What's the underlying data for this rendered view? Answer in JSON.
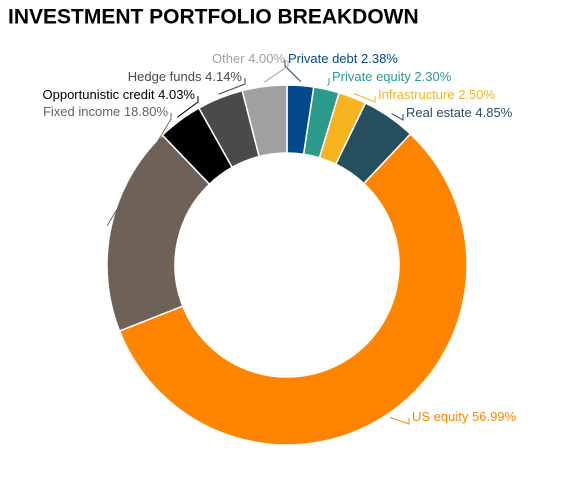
{
  "chart_data": {
    "type": "donut",
    "title": "INVESTMENT PORTFOLIO BREAKDOWN",
    "categories": [
      "Private debt",
      "Private equity",
      "Infrastructure",
      "Real estate",
      "US equity",
      "Fixed income",
      "Opportunistic credit",
      "Hedge funds",
      "Other"
    ],
    "values": [
      2.38,
      2.3,
      2.5,
      4.85,
      56.99,
      18.8,
      4.03,
      4.14,
      4.0
    ],
    "value_labels": [
      "2.38%",
      "2.30%",
      "2.50%",
      "4.85%",
      "56.99%",
      "18.80%",
      "4.03%",
      "4.14%",
      "4.00%"
    ],
    "colors": [
      "#034a8c",
      "#2a9a8b",
      "#f7b320",
      "#254f5f",
      "#ff8500",
      "#6d6158",
      "#000000",
      "#4a4a4a",
      "#a0a0a0"
    ]
  }
}
